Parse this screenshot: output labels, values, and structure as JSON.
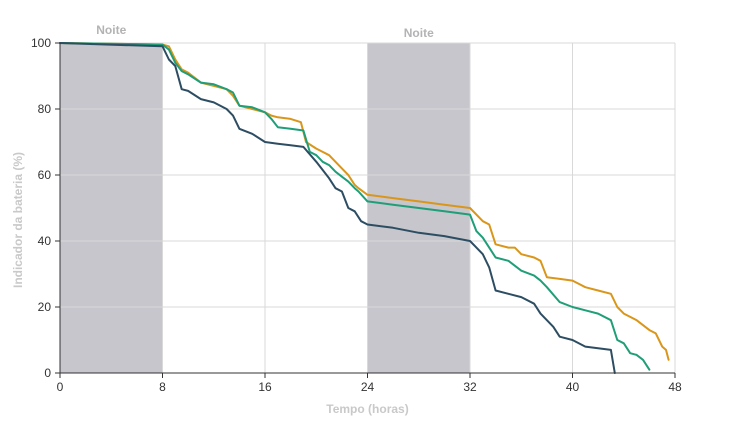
{
  "chart_data": {
    "type": "line",
    "title": "",
    "xlabel": "Tempo (horas)",
    "ylabel": "Indicador da bateria (%)",
    "xlim": [
      0,
      48
    ],
    "ylim": [
      0,
      100
    ],
    "xticks": [
      0,
      8,
      16,
      24,
      32,
      40,
      48
    ],
    "yticks": [
      0,
      20,
      40,
      60,
      80,
      100
    ],
    "grid": true,
    "legend": "none",
    "bands": [
      {
        "label": "Noite",
        "x0": 0,
        "x1": 8
      },
      {
        "label": "Noite",
        "x0": 24,
        "x1": 32
      }
    ],
    "colors": {
      "band": "#c6c6cc",
      "grid": "#d9d9d9",
      "axis": "#333333"
    },
    "series": [
      {
        "color": "#d9961a",
        "x": [
          0,
          8,
          8.5,
          9,
          9.5,
          10,
          11,
          12,
          13,
          13.5,
          14,
          15,
          16,
          16.5,
          17,
          18,
          18.8,
          19.2,
          20,
          20.5,
          21,
          21.5,
          22,
          22.5,
          23,
          23.3,
          24,
          26,
          28,
          30,
          32,
          33,
          33.5,
          34,
          35,
          35.5,
          36,
          37,
          37.5,
          38,
          39,
          40,
          40.5,
          41,
          42,
          43,
          43.5,
          44,
          44.5,
          45,
          46,
          46.5,
          47,
          47.3,
          47.5
        ],
        "y": [
          100,
          99.5,
          99,
          95,
          92,
          91,
          88,
          87,
          86,
          84,
          81,
          80,
          79,
          78,
          77.5,
          77,
          76,
          70,
          68,
          67,
          66,
          64,
          62,
          60,
          57,
          56,
          54,
          53,
          52,
          51,
          50,
          46,
          45,
          39,
          38,
          38,
          36,
          35,
          34,
          29,
          28.5,
          28,
          27,
          26,
          25,
          24,
          20,
          18,
          17,
          16,
          13,
          12,
          8,
          7,
          4
        ]
      },
      {
        "color": "#1f9e77",
        "x": [
          0,
          8,
          8.5,
          9,
          9.5,
          10,
          11,
          12,
          13,
          13.5,
          14,
          15,
          16,
          16.5,
          17,
          18,
          19,
          19.5,
          20,
          20.5,
          21,
          21.5,
          22,
          22.5,
          23,
          23.3,
          24,
          26,
          28,
          30,
          32,
          32.5,
          33,
          33.5,
          34,
          35,
          36,
          37,
          37.5,
          38,
          39,
          40,
          41,
          42,
          43,
          43.5,
          44,
          44.5,
          45,
          45.5,
          46
        ],
        "y": [
          100,
          99.5,
          98,
          94,
          91.5,
          90.5,
          88,
          87.5,
          86,
          85,
          81,
          80.5,
          79,
          77,
          74.5,
          74,
          73.5,
          67,
          66,
          64,
          63,
          61,
          59.5,
          58,
          56,
          55,
          52,
          51,
          50,
          49,
          48,
          43,
          41,
          38,
          35,
          34,
          31,
          29.5,
          28,
          26,
          21.5,
          20,
          19,
          18,
          16,
          10,
          9,
          6,
          5.5,
          4,
          1
        ]
      },
      {
        "color": "#2d4d63",
        "x": [
          0,
          8,
          8.5,
          9,
          9.5,
          10,
          11,
          12,
          13,
          13.5,
          14,
          15,
          16,
          17,
          18,
          19,
          20,
          21,
          21.5,
          22,
          22.5,
          23,
          23.5,
          24,
          26,
          28,
          30,
          32,
          32.5,
          33,
          33.5,
          34,
          35,
          36,
          37,
          37.5,
          38,
          38.5,
          39,
          40,
          41,
          42,
          43,
          43.3
        ],
        "y": [
          100,
          99,
          95,
          93,
          86,
          85.5,
          83,
          82,
          80,
          78,
          74,
          72.5,
          70,
          69.5,
          69,
          68.5,
          64,
          59,
          56,
          55,
          50,
          49,
          46,
          45,
          44,
          42.5,
          41.5,
          40,
          38,
          36,
          32,
          25,
          24,
          23,
          21,
          18,
          16,
          14,
          11,
          10,
          8,
          7.5,
          7,
          0
        ]
      }
    ]
  }
}
